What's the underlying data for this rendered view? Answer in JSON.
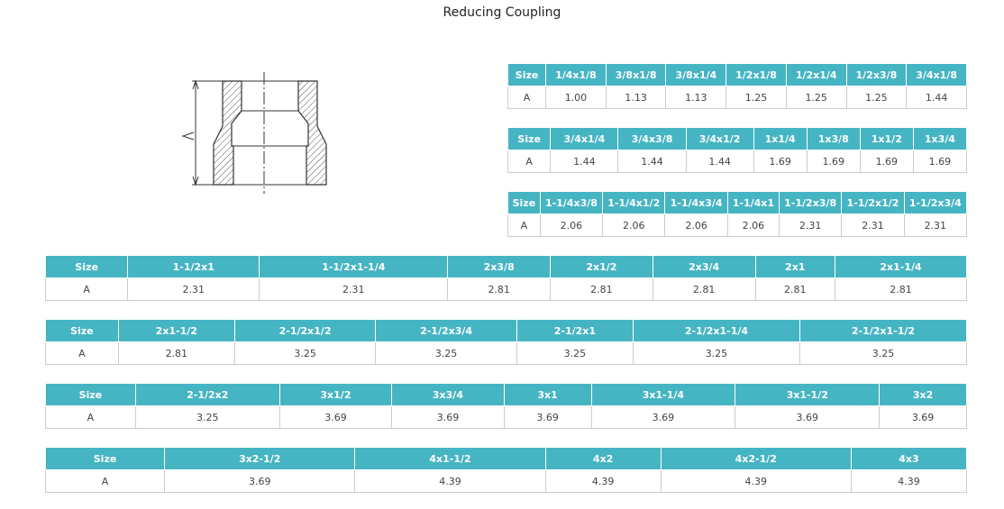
{
  "title": "Reducing Coupling",
  "tables": [
    {
      "header": [
        "Size",
        "1/4x1/8",
        "3/8x1/8",
        "3/8x1/4",
        "1/2x1/8",
        "1/2x1/4",
        "1/2x3/8",
        "3/4x1/8"
      ],
      "row": [
        "A",
        "1.00",
        "1.13",
        "1.13",
        "1.25",
        "1.25",
        "1.25",
        "1.44"
      ]
    },
    {
      "header": [
        "Size",
        "3/4x1/4",
        "3/4x3/8",
        "3/4x1/2",
        "1x1/4",
        "1x3/8",
        "1x1/2",
        "1x3/4"
      ],
      "row": [
        "A",
        "1.44",
        "1.44",
        "1.44",
        "1.69",
        "1.69",
        "1.69",
        "1.69"
      ]
    },
    {
      "header": [
        "Size",
        "1-1/4x3/8",
        "1-1/4x1/2",
        "1-1/4x3/4",
        "1-1/4x1",
        "1-1/2x3/8",
        "1-1/2x1/2",
        "1-1/2x3/4"
      ],
      "row": [
        "A",
        "2.06",
        "2.06",
        "2.06",
        "2.06",
        "2.31",
        "2.31",
        "2.31"
      ]
    },
    {
      "header": [
        "Size",
        "1-1/2x1",
        "1-1/2x1-1/4",
        "2x3/8",
        "2x1/2",
        "2x3/4",
        "2x1",
        "2x1-1/4"
      ],
      "row": [
        "A",
        "2.31",
        "2.31",
        "2.81",
        "2.81",
        "2.81",
        "2.81",
        "2.81"
      ]
    },
    {
      "header": [
        "Size",
        "2x1-1/2",
        "2-1/2x1/2",
        "2-1/2x3/4",
        "2-1/2x1",
        "2-1/2x1-1/4",
        "2-1/2x1-1/2"
      ],
      "row": [
        "A",
        "2.81",
        "3.25",
        "3.25",
        "3.25",
        "3.25",
        "3.25"
      ]
    },
    {
      "header": [
        "Size",
        "2-1/2x2",
        "3x1/2",
        "3x3/4",
        "3x1",
        "3x1-1/4",
        "3x1-1/2",
        "3x2"
      ],
      "row": [
        "A",
        "3.25",
        "3.69",
        "3.69",
        "3.69",
        "3.69",
        "3.69",
        "3.69"
      ]
    },
    {
      "header": [
        "Size",
        "3x2-1/2",
        "4x1-1/2",
        "4x2",
        "4x2-1/2",
        "4x3"
      ],
      "row": [
        "A",
        "3.69",
        "4.39",
        "4.39",
        "4.39",
        "4.39"
      ]
    }
  ]
}
